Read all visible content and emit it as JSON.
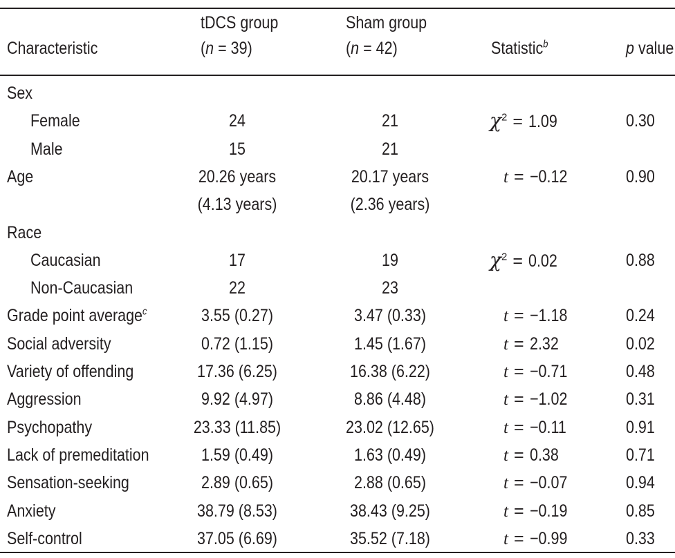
{
  "header": {
    "characteristic": "Characteristic",
    "tdcs_line1": "tDCS group",
    "tdcs_n_var": "n",
    "tdcs_n_eq": "=",
    "tdcs_n_val": "39",
    "sham_line1": "Sham group",
    "sham_n_var": "n",
    "sham_n_eq": "=",
    "sham_n_val": "42",
    "statistic": "Statistic",
    "statistic_note": "b",
    "p_var": "p",
    "p_value": "value"
  },
  "rows": [
    {
      "label": "Sex",
      "indent": false,
      "tdcs": "",
      "sham": "",
      "stat_sym": "",
      "stat_eq": "",
      "stat_val": "",
      "p": ""
    },
    {
      "label": "Female",
      "indent": true,
      "tdcs": "24",
      "sham": "21",
      "stat_sym": "χ",
      "stat_sup": "2",
      "stat_eq": "=",
      "stat_val": "1.09",
      "p": "0.30"
    },
    {
      "label": "Male",
      "indent": true,
      "tdcs": "15",
      "sham": "21",
      "stat_sym": "",
      "stat_eq": "",
      "stat_val": "",
      "p": ""
    },
    {
      "label": "Age",
      "indent": false,
      "tdcs": "20.26 years",
      "sham": "20.17 years",
      "stat_sym": "t",
      "stat_eq": "=",
      "stat_val": "−0.12",
      "p": "0.90"
    },
    {
      "label": "",
      "indent": false,
      "tdcs": "(4.13 years)",
      "sham": "(2.36 years)",
      "stat_sym": "",
      "stat_eq": "",
      "stat_val": "",
      "p": ""
    },
    {
      "label": "Race",
      "indent": false,
      "tdcs": "",
      "sham": "",
      "stat_sym": "",
      "stat_eq": "",
      "stat_val": "",
      "p": ""
    },
    {
      "label": "Caucasian",
      "indent": true,
      "tdcs": "17",
      "sham": "19",
      "stat_sym": "χ",
      "stat_sup": "2",
      "stat_eq": "=",
      "stat_val": "0.02",
      "p": "0.88"
    },
    {
      "label": "Non-Caucasian",
      "indent": true,
      "tdcs": "22",
      "sham": "23",
      "stat_sym": "",
      "stat_eq": "",
      "stat_val": "",
      "p": ""
    },
    {
      "label": "Grade point average",
      "label_note": "c",
      "indent": false,
      "tdcs": "3.55 (0.27)",
      "sham": "3.47 (0.33)",
      "stat_sym": "t",
      "stat_eq": "=",
      "stat_val": "−1.18",
      "p": "0.24"
    },
    {
      "label": "Social adversity",
      "indent": false,
      "tdcs": "0.72 (1.15)",
      "sham": "1.45 (1.67)",
      "stat_sym": "t",
      "stat_eq": "=",
      "stat_val": "2.32",
      "p": "0.02"
    },
    {
      "label": "Variety of offending",
      "indent": false,
      "tdcs": "17.36 (6.25)",
      "sham": "16.38 (6.22)",
      "stat_sym": "t",
      "stat_eq": "=",
      "stat_val": "−0.71",
      "p": "0.48"
    },
    {
      "label": "Aggression",
      "indent": false,
      "tdcs": "9.92 (4.97)",
      "sham": "8.86 (4.48)",
      "stat_sym": "t",
      "stat_eq": "=",
      "stat_val": "−1.02",
      "p": "0.31"
    },
    {
      "label": "Psychopathy",
      "indent": false,
      "tdcs": "23.33 (11.85)",
      "sham": "23.02 (12.65)",
      "stat_sym": "t",
      "stat_eq": "=",
      "stat_val": "−0.11",
      "p": "0.91"
    },
    {
      "label": "Lack of premeditation",
      "indent": false,
      "tdcs": "1.59 (0.49)",
      "sham": "1.63 (0.49)",
      "stat_sym": "t",
      "stat_eq": "=",
      "stat_val": "0.38",
      "p": "0.71"
    },
    {
      "label": "Sensation-seeking",
      "indent": false,
      "tdcs": "2.89 (0.65)",
      "sham": "2.88 (0.65)",
      "stat_sym": "t",
      "stat_eq": "=",
      "stat_val": "−0.07",
      "p": "0.94"
    },
    {
      "label": "Anxiety",
      "indent": false,
      "tdcs": "38.79 (8.53)",
      "sham": "38.43 (9.25)",
      "stat_sym": "t",
      "stat_eq": "=",
      "stat_val": "−0.19",
      "p": "0.85"
    },
    {
      "label": "Self-control",
      "indent": false,
      "tdcs": "37.05 (6.69)",
      "sham": "35.52 (7.18)",
      "stat_sym": "t",
      "stat_eq": "=",
      "stat_val": "−0.99",
      "p": "0.33"
    }
  ]
}
